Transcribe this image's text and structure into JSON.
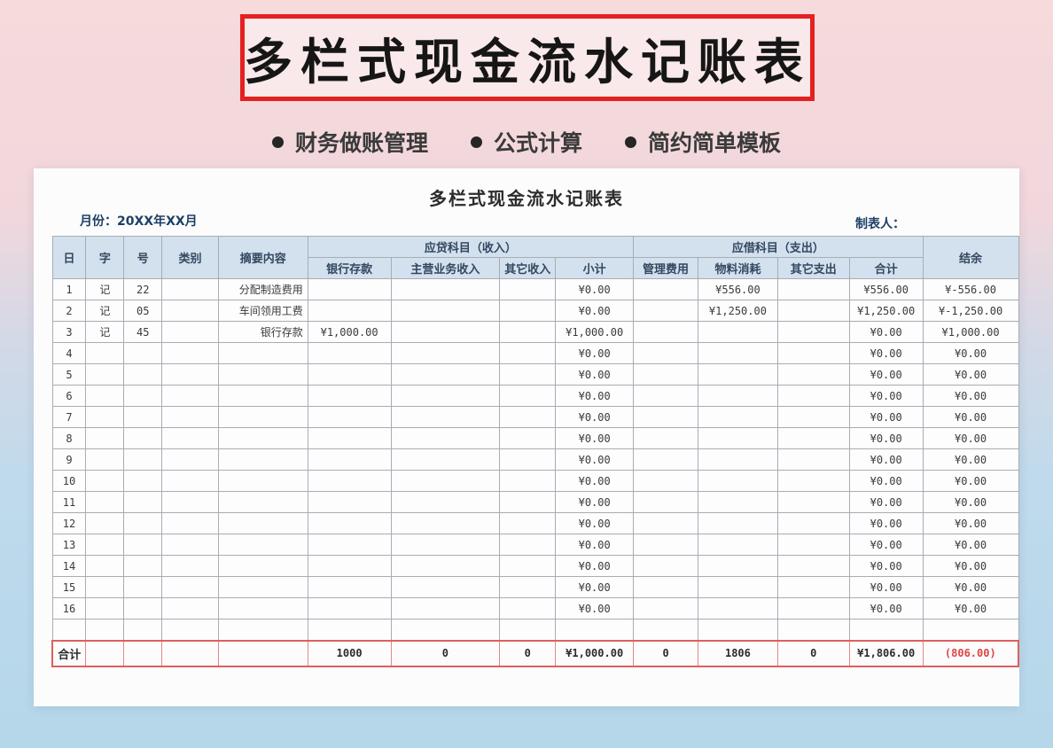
{
  "banner": {
    "title": "多栏式现金流水记账表"
  },
  "features": {
    "item1": "财务做账管理",
    "item2": "公式计算",
    "item3": "简约简单模板"
  },
  "sheet": {
    "title": "多栏式现金流水记账表",
    "month_label": "月份：20XX年XX月",
    "preparer_label": "制表人：",
    "header": {
      "day": "日",
      "word": "字",
      "no": "号",
      "category": "类别",
      "summary": "摘要内容",
      "income_group": "应贷科目（收入）",
      "income_cols": [
        "银行存款",
        "主营业务收入",
        "其它收入",
        "小计"
      ],
      "expense_group": "应借科目（支出）",
      "expense_cols": [
        "管理费用",
        "物料消耗",
        "其它支出",
        "合计"
      ],
      "balance": "结余"
    },
    "rows": [
      {
        "day": "1",
        "word": "记",
        "no": "22",
        "category": "",
        "summary": "分配制造费用",
        "bank": "",
        "main": "",
        "other_in": "",
        "subtotal": "¥0.00",
        "admin": "",
        "material": "¥556.00",
        "other_out": "",
        "total": "¥556.00",
        "balance": "¥-556.00"
      },
      {
        "day": "2",
        "word": "记",
        "no": "05",
        "category": "",
        "summary": "车间领用工费",
        "bank": "",
        "main": "",
        "other_in": "",
        "subtotal": "¥0.00",
        "admin": "",
        "material": "¥1,250.00",
        "other_out": "",
        "total": "¥1,250.00",
        "balance": "¥-1,250.00"
      },
      {
        "day": "3",
        "word": "记",
        "no": "45",
        "category": "",
        "summary": "银行存款",
        "bank": "¥1,000.00",
        "main": "",
        "other_in": "",
        "subtotal": "¥1,000.00",
        "admin": "",
        "material": "",
        "other_out": "",
        "total": "¥0.00",
        "balance": "¥1,000.00"
      },
      {
        "day": "4",
        "word": "",
        "no": "",
        "category": "",
        "summary": "",
        "bank": "",
        "main": "",
        "other_in": "",
        "subtotal": "¥0.00",
        "admin": "",
        "material": "",
        "other_out": "",
        "total": "¥0.00",
        "balance": "¥0.00"
      },
      {
        "day": "5",
        "word": "",
        "no": "",
        "category": "",
        "summary": "",
        "bank": "",
        "main": "",
        "other_in": "",
        "subtotal": "¥0.00",
        "admin": "",
        "material": "",
        "other_out": "",
        "total": "¥0.00",
        "balance": "¥0.00"
      },
      {
        "day": "6",
        "word": "",
        "no": "",
        "category": "",
        "summary": "",
        "bank": "",
        "main": "",
        "other_in": "",
        "subtotal": "¥0.00",
        "admin": "",
        "material": "",
        "other_out": "",
        "total": "¥0.00",
        "balance": "¥0.00"
      },
      {
        "day": "7",
        "word": "",
        "no": "",
        "category": "",
        "summary": "",
        "bank": "",
        "main": "",
        "other_in": "",
        "subtotal": "¥0.00",
        "admin": "",
        "material": "",
        "other_out": "",
        "total": "¥0.00",
        "balance": "¥0.00"
      },
      {
        "day": "8",
        "word": "",
        "no": "",
        "category": "",
        "summary": "",
        "bank": "",
        "main": "",
        "other_in": "",
        "subtotal": "¥0.00",
        "admin": "",
        "material": "",
        "other_out": "",
        "total": "¥0.00",
        "balance": "¥0.00"
      },
      {
        "day": "9",
        "word": "",
        "no": "",
        "category": "",
        "summary": "",
        "bank": "",
        "main": "",
        "other_in": "",
        "subtotal": "¥0.00",
        "admin": "",
        "material": "",
        "other_out": "",
        "total": "¥0.00",
        "balance": "¥0.00"
      },
      {
        "day": "10",
        "word": "",
        "no": "",
        "category": "",
        "summary": "",
        "bank": "",
        "main": "",
        "other_in": "",
        "subtotal": "¥0.00",
        "admin": "",
        "material": "",
        "other_out": "",
        "total": "¥0.00",
        "balance": "¥0.00"
      },
      {
        "day": "11",
        "word": "",
        "no": "",
        "category": "",
        "summary": "",
        "bank": "",
        "main": "",
        "other_in": "",
        "subtotal": "¥0.00",
        "admin": "",
        "material": "",
        "other_out": "",
        "total": "¥0.00",
        "balance": "¥0.00"
      },
      {
        "day": "12",
        "word": "",
        "no": "",
        "category": "",
        "summary": "",
        "bank": "",
        "main": "",
        "other_in": "",
        "subtotal": "¥0.00",
        "admin": "",
        "material": "",
        "other_out": "",
        "total": "¥0.00",
        "balance": "¥0.00"
      },
      {
        "day": "13",
        "word": "",
        "no": "",
        "category": "",
        "summary": "",
        "bank": "",
        "main": "",
        "other_in": "",
        "subtotal": "¥0.00",
        "admin": "",
        "material": "",
        "other_out": "",
        "total": "¥0.00",
        "balance": "¥0.00"
      },
      {
        "day": "14",
        "word": "",
        "no": "",
        "category": "",
        "summary": "",
        "bank": "",
        "main": "",
        "other_in": "",
        "subtotal": "¥0.00",
        "admin": "",
        "material": "",
        "other_out": "",
        "total": "¥0.00",
        "balance": "¥0.00"
      },
      {
        "day": "15",
        "word": "",
        "no": "",
        "category": "",
        "summary": "",
        "bank": "",
        "main": "",
        "other_in": "",
        "subtotal": "¥0.00",
        "admin": "",
        "material": "",
        "other_out": "",
        "total": "¥0.00",
        "balance": "¥0.00"
      },
      {
        "day": "16",
        "word": "",
        "no": "",
        "category": "",
        "summary": "",
        "bank": "",
        "main": "",
        "other_in": "",
        "subtotal": "¥0.00",
        "admin": "",
        "material": "",
        "other_out": "",
        "total": "¥0.00",
        "balance": "¥0.00"
      },
      {
        "day": "",
        "word": "",
        "no": "",
        "category": "",
        "summary": "",
        "bank": "",
        "main": "",
        "other_in": "",
        "subtotal": "",
        "admin": "",
        "material": "",
        "other_out": "",
        "total": "",
        "balance": ""
      }
    ],
    "total_row": {
      "label": "合计",
      "bank": "1000",
      "main": "0",
      "other_in": "0",
      "subtotal": "¥1,000.00",
      "admin": "0",
      "material": "1806",
      "other_out": "0",
      "total": "¥1,806.00",
      "balance": "(806.00)"
    }
  },
  "colors": {
    "banner_border_red": "#e52020",
    "total_frame_red": "#dd6060",
    "negative_red": "#e04444",
    "header_bg_blue": "#d3e1ee",
    "header_text_blue": "#33475f",
    "label_navy": "#1d3f66"
  }
}
